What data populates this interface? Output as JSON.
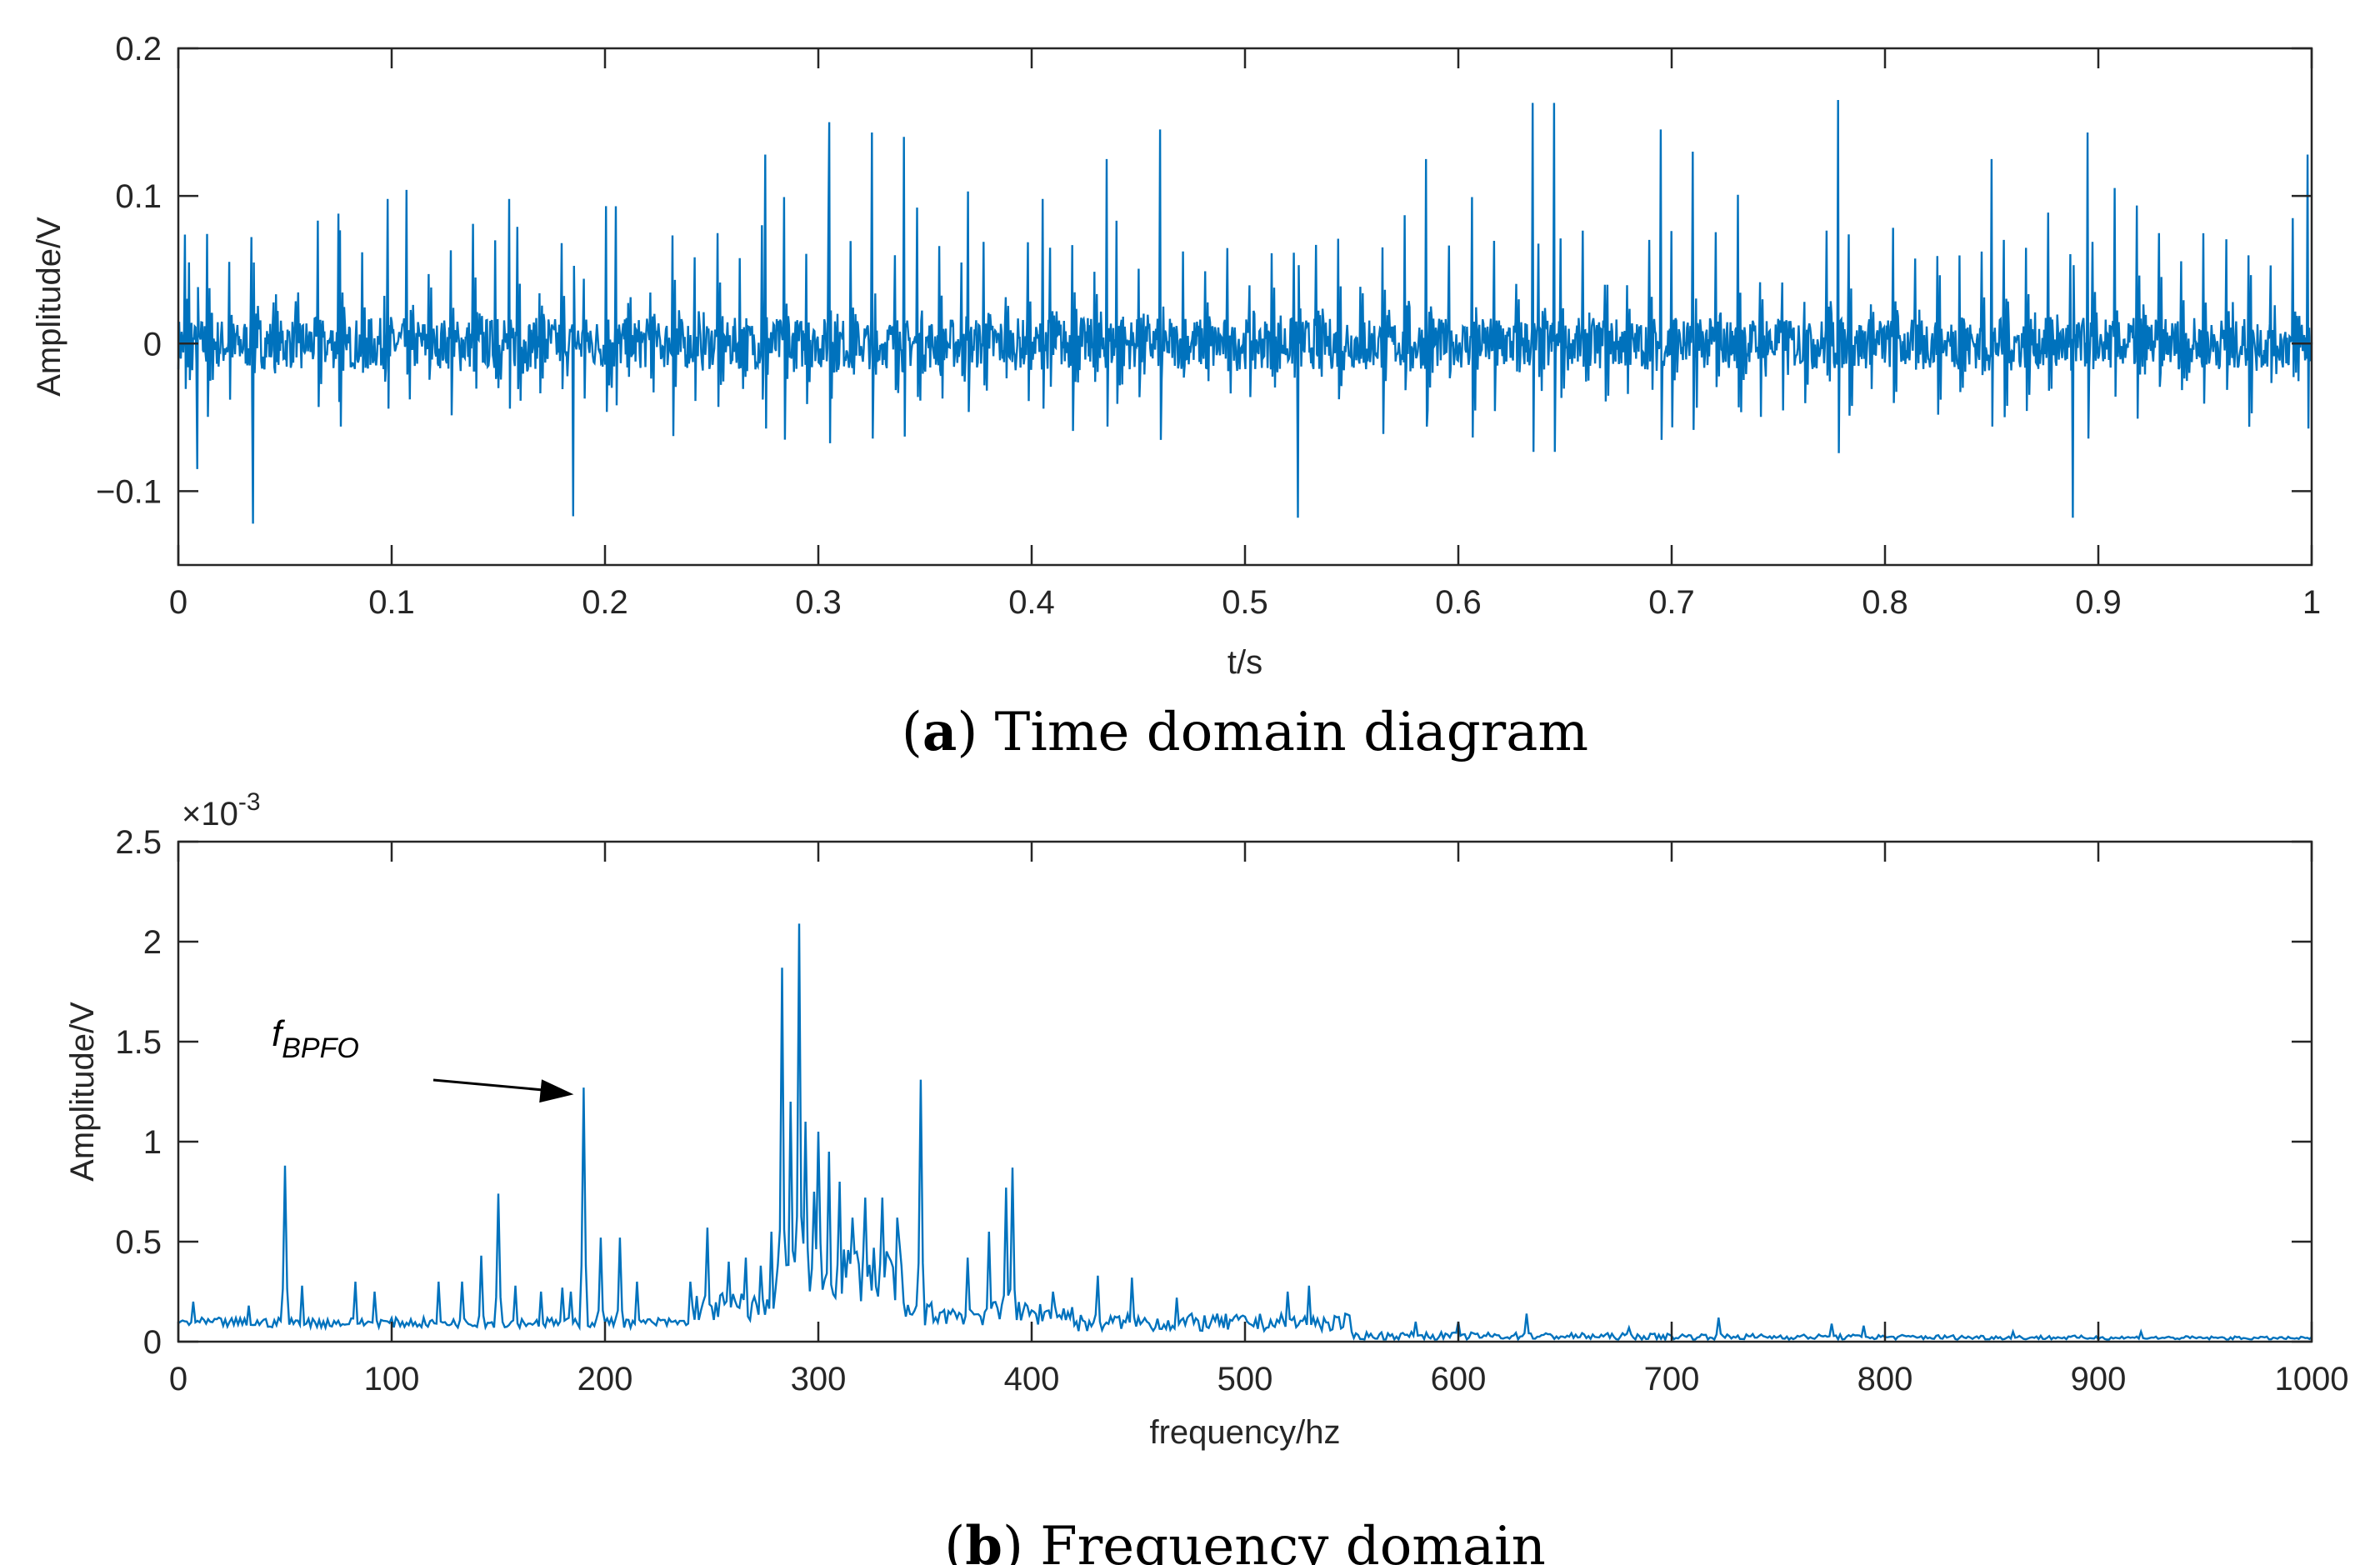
{
  "chart_data": [
    {
      "type": "line",
      "panel": "a",
      "caption_letter": "a",
      "caption_text": "Time domain diagram",
      "xlabel": "t/s",
      "ylabel": "Amplitude/V",
      "xlim": [
        0,
        1
      ],
      "ylim": [
        -0.15,
        0.2
      ],
      "xticks": [
        0,
        0.1,
        0.2,
        0.3,
        0.4,
        0.5,
        0.6,
        0.7,
        0.8,
        0.9,
        1
      ],
      "xtick_labels": [
        "0",
        "0.1",
        "0.2",
        "0.3",
        "0.4",
        "0.5",
        "0.6",
        "0.7",
        "0.8",
        "0.9",
        "1"
      ],
      "yticks": [
        -0.1,
        0,
        0.1,
        0.2
      ],
      "ytick_labels": [
        "−0.1",
        "0",
        "0.1",
        "0.2"
      ],
      "series_color": "#0072BD",
      "impulse_interval_s": 0.0104,
      "noise_amplitude_v": 0.025,
      "peak_events": [
        {
          "t": 0.005,
          "v": 0.055
        },
        {
          "t": 0.009,
          "v": -0.085
        },
        {
          "t": 0.035,
          "v": -0.122
        },
        {
          "t": 0.075,
          "v": 0.088
        },
        {
          "t": 0.098,
          "v": 0.098
        },
        {
          "t": 0.155,
          "v": 0.098
        },
        {
          "t": 0.185,
          "v": -0.117
        },
        {
          "t": 0.205,
          "v": 0.093
        },
        {
          "t": 0.275,
          "v": 0.128
        },
        {
          "t": 0.305,
          "v": 0.15
        },
        {
          "t": 0.325,
          "v": 0.143
        },
        {
          "t": 0.34,
          "v": 0.14
        },
        {
          "t": 0.37,
          "v": 0.103
        },
        {
          "t": 0.405,
          "v": 0.098
        },
        {
          "t": 0.435,
          "v": 0.125
        },
        {
          "t": 0.46,
          "v": 0.145
        },
        {
          "t": 0.525,
          "v": -0.118
        },
        {
          "t": 0.585,
          "v": 0.125
        },
        {
          "t": 0.635,
          "v": 0.163
        },
        {
          "t": 0.645,
          "v": 0.163
        },
        {
          "t": 0.695,
          "v": 0.145
        },
        {
          "t": 0.71,
          "v": 0.13
        },
        {
          "t": 0.778,
          "v": 0.165
        },
        {
          "t": 0.85,
          "v": 0.125
        },
        {
          "t": 0.888,
          "v": -0.118
        },
        {
          "t": 0.895,
          "v": 0.143
        },
        {
          "t": 0.998,
          "v": 0.128
        }
      ]
    },
    {
      "type": "line",
      "panel": "b",
      "caption_letter": "b",
      "caption_text": "Frequency domain",
      "xlabel": "frequency/hz",
      "ylabel": "Amplitude/V",
      "y_exponent_label": "×10",
      "y_exponent": "-3",
      "xlim": [
        0,
        1000
      ],
      "ylim": [
        0,
        2.5
      ],
      "xticks": [
        0,
        100,
        200,
        300,
        400,
        500,
        600,
        700,
        800,
        900,
        1000
      ],
      "xtick_labels": [
        "0",
        "100",
        "200",
        "300",
        "400",
        "500",
        "600",
        "700",
        "800",
        "900",
        "1000"
      ],
      "yticks": [
        0,
        0.5,
        1,
        1.5,
        2,
        2.5
      ],
      "ytick_labels": [
        "0",
        "0.5",
        "1",
        "1.5",
        "2",
        "2.5"
      ],
      "series_color": "#0072BD",
      "annotation": {
        "text": "f",
        "subscript": "BPFO",
        "target_x": 190,
        "target_y": 1.27
      },
      "peaks": [
        {
          "x": 7,
          "y": 0.2
        },
        {
          "x": 33,
          "y": 0.18
        },
        {
          "x": 50,
          "y": 0.88
        },
        {
          "x": 58,
          "y": 0.28
        },
        {
          "x": 83,
          "y": 0.3
        },
        {
          "x": 92,
          "y": 0.25
        },
        {
          "x": 122,
          "y": 0.3
        },
        {
          "x": 133,
          "y": 0.3
        },
        {
          "x": 142,
          "y": 0.43
        },
        {
          "x": 150,
          "y": 0.74
        },
        {
          "x": 158,
          "y": 0.28
        },
        {
          "x": 170,
          "y": 0.25
        },
        {
          "x": 180,
          "y": 0.27
        },
        {
          "x": 184,
          "y": 0.25
        },
        {
          "x": 190,
          "y": 1.27
        },
        {
          "x": 198,
          "y": 0.52
        },
        {
          "x": 207,
          "y": 0.52
        },
        {
          "x": 215,
          "y": 0.3
        },
        {
          "x": 240,
          "y": 0.3
        },
        {
          "x": 248,
          "y": 0.57
        },
        {
          "x": 258,
          "y": 0.4
        },
        {
          "x": 266,
          "y": 0.42
        },
        {
          "x": 273,
          "y": 0.38
        },
        {
          "x": 278,
          "y": 0.55
        },
        {
          "x": 283,
          "y": 1.87
        },
        {
          "x": 287,
          "y": 1.2
        },
        {
          "x": 291,
          "y": 2.09
        },
        {
          "x": 294,
          "y": 1.1
        },
        {
          "x": 298,
          "y": 0.75
        },
        {
          "x": 300,
          "y": 1.05
        },
        {
          "x": 305,
          "y": 0.95
        },
        {
          "x": 310,
          "y": 0.8
        },
        {
          "x": 316,
          "y": 0.62
        },
        {
          "x": 322,
          "y": 0.72
        },
        {
          "x": 330,
          "y": 0.72
        },
        {
          "x": 337,
          "y": 0.62
        },
        {
          "x": 348,
          "y": 1.31
        },
        {
          "x": 370,
          "y": 0.42
        },
        {
          "x": 380,
          "y": 0.55
        },
        {
          "x": 388,
          "y": 0.77
        },
        {
          "x": 391,
          "y": 0.87
        },
        {
          "x": 410,
          "y": 0.25
        },
        {
          "x": 431,
          "y": 0.33
        },
        {
          "x": 447,
          "y": 0.32
        },
        {
          "x": 468,
          "y": 0.22
        },
        {
          "x": 520,
          "y": 0.25
        },
        {
          "x": 530,
          "y": 0.28
        },
        {
          "x": 580,
          "y": 0.1
        },
        {
          "x": 600,
          "y": 0.1
        },
        {
          "x": 632,
          "y": 0.14
        },
        {
          "x": 680,
          "y": 0.07
        },
        {
          "x": 722,
          "y": 0.12
        },
        {
          "x": 775,
          "y": 0.09
        },
        {
          "x": 790,
          "y": 0.08
        },
        {
          "x": 860,
          "y": 0.05
        },
        {
          "x": 920,
          "y": 0.05
        }
      ]
    }
  ]
}
